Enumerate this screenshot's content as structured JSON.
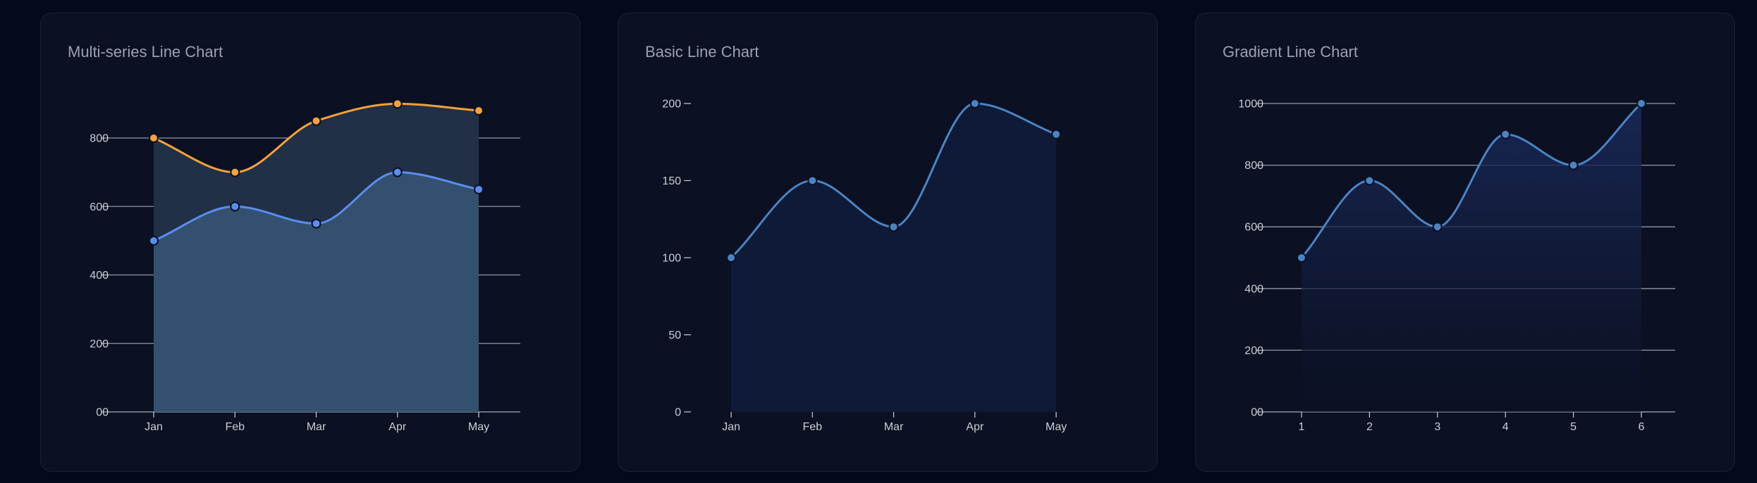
{
  "chart_data": [
    {
      "type": "line",
      "title": "Multi-series Line Chart",
      "categories": [
        "Jan",
        "Feb",
        "Mar",
        "Apr",
        "May"
      ],
      "series": [
        {
          "values": [
            500,
            600,
            550,
            700,
            650
          ],
          "color": "#5b8def",
          "fill": "#34506f"
        },
        {
          "values": [
            800,
            700,
            850,
            900,
            880
          ],
          "color": "#f2a33a",
          "fill": "#213047"
        }
      ],
      "ylim": [
        0,
        1000
      ],
      "yticks": [
        0,
        200,
        400,
        600,
        800
      ],
      "ytick_labels": [
        "00",
        "200",
        "400",
        "600",
        "800"
      ],
      "grid": true,
      "curve": "smooth",
      "area": true,
      "xlabel": "",
      "ylabel": ""
    },
    {
      "type": "line",
      "title": "Basic Line Chart",
      "categories": [
        "Jan",
        "Feb",
        "Mar",
        "Apr",
        "May"
      ],
      "series": [
        {
          "values": [
            100,
            150,
            120,
            200,
            180
          ],
          "color": "#4a84c4",
          "fill": "#0f1a36"
        }
      ],
      "ylim": [
        0,
        200
      ],
      "yticks": [
        0,
        50,
        100,
        150,
        200
      ],
      "ytick_labels": [
        "0",
        "50",
        "100",
        "150",
        "200"
      ],
      "grid": false,
      "curve": "smooth",
      "area": true,
      "xlabel": "",
      "ylabel": ""
    },
    {
      "type": "line",
      "title": "Gradient Line Chart",
      "categories": [
        "1",
        "2",
        "3",
        "4",
        "5",
        "6"
      ],
      "series": [
        {
          "values": [
            500,
            750,
            600,
            900,
            800,
            1000
          ],
          "color": "#4a84c4",
          "fill": "#14224a"
        }
      ],
      "ylim": [
        0,
        1000
      ],
      "yticks": [
        0,
        200,
        400,
        600,
        800,
        1000
      ],
      "ytick_labels": [
        "00",
        "200",
        "400",
        "600",
        "800",
        "1000"
      ],
      "grid": true,
      "curve": "smooth",
      "area": true,
      "gradient_fill": true,
      "xlabel": "",
      "ylabel": ""
    }
  ]
}
